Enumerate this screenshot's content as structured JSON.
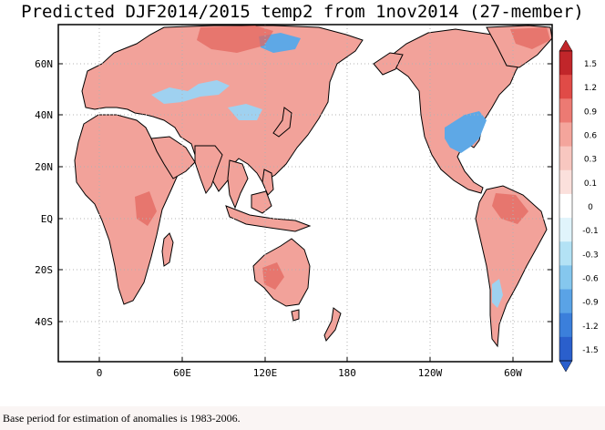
{
  "title": "Predicted DJF2014/2015 temp2 from 1nov2014 (27-member)",
  "axes": {
    "lat_labels": [
      "60N",
      "40N",
      "20N",
      "EQ",
      "20S",
      "40S"
    ],
    "lon_labels": [
      "0",
      "60E",
      "120E",
      "180",
      "120W",
      "60W"
    ]
  },
  "colorbar": {
    "labels": [
      "1.5",
      "1.2",
      "0.9",
      "0.6",
      "0.3",
      "0.1",
      "0",
      "-0.1",
      "-0.3",
      "-0.6",
      "-0.9",
      "-1.2",
      "-1.5"
    ],
    "colors": [
      "#c1262a",
      "#e04b47",
      "#ec7a73",
      "#f4a59c",
      "#f8c7c0",
      "#fbe0dc",
      "#ffffff",
      "#e0f4fb",
      "#b3e2f5",
      "#85c7ee",
      "#5aa3e6",
      "#3b7fdb",
      "#2a5fcc"
    ]
  },
  "footnote": "Base period for estimation of anomalies is 1983-2006.",
  "palette": {
    "warm_fill": "#f2a29a",
    "warm_strong": "#e3675f",
    "cool_fill": "#9fd1f0",
    "cool_strong": "#5ea8e6",
    "coast": "#000000",
    "grid": "#b3b3b3"
  }
}
